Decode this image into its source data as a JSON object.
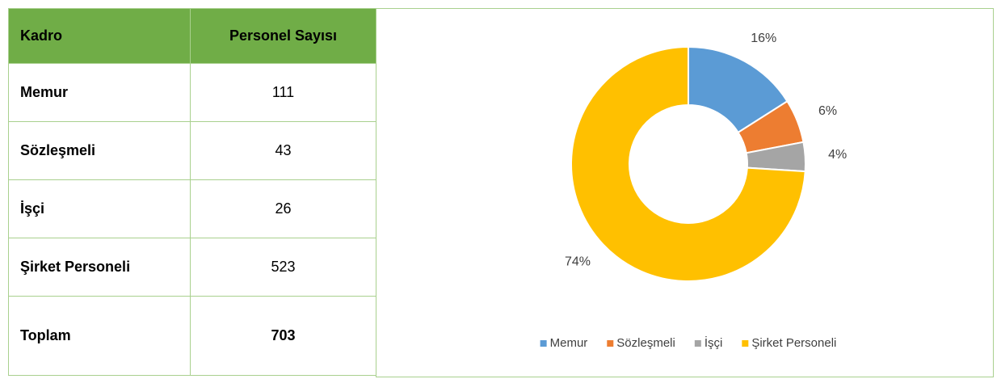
{
  "table": {
    "header": [
      "Kadro",
      "Personel Sayısı"
    ],
    "rows": [
      [
        "Memur",
        111
      ],
      [
        "Sözleşmeli",
        43
      ],
      [
        "İşçi",
        26
      ],
      [
        "Şirket Personeli",
        523
      ]
    ],
    "total": [
      "Toplam",
      703
    ]
  },
  "chart_data": {
    "type": "doughnut",
    "categories": [
      "Memur",
      "Sözleşmeli",
      "İşçi",
      "Şirket Personeli"
    ],
    "values": [
      16,
      6,
      4,
      74
    ],
    "value_labels": [
      "16%",
      "6%",
      "4%",
      "74%"
    ],
    "colors": [
      "#5b9bd5",
      "#ed7d31",
      "#a5a5a5",
      "#ffc000"
    ],
    "legend": "bottom"
  }
}
